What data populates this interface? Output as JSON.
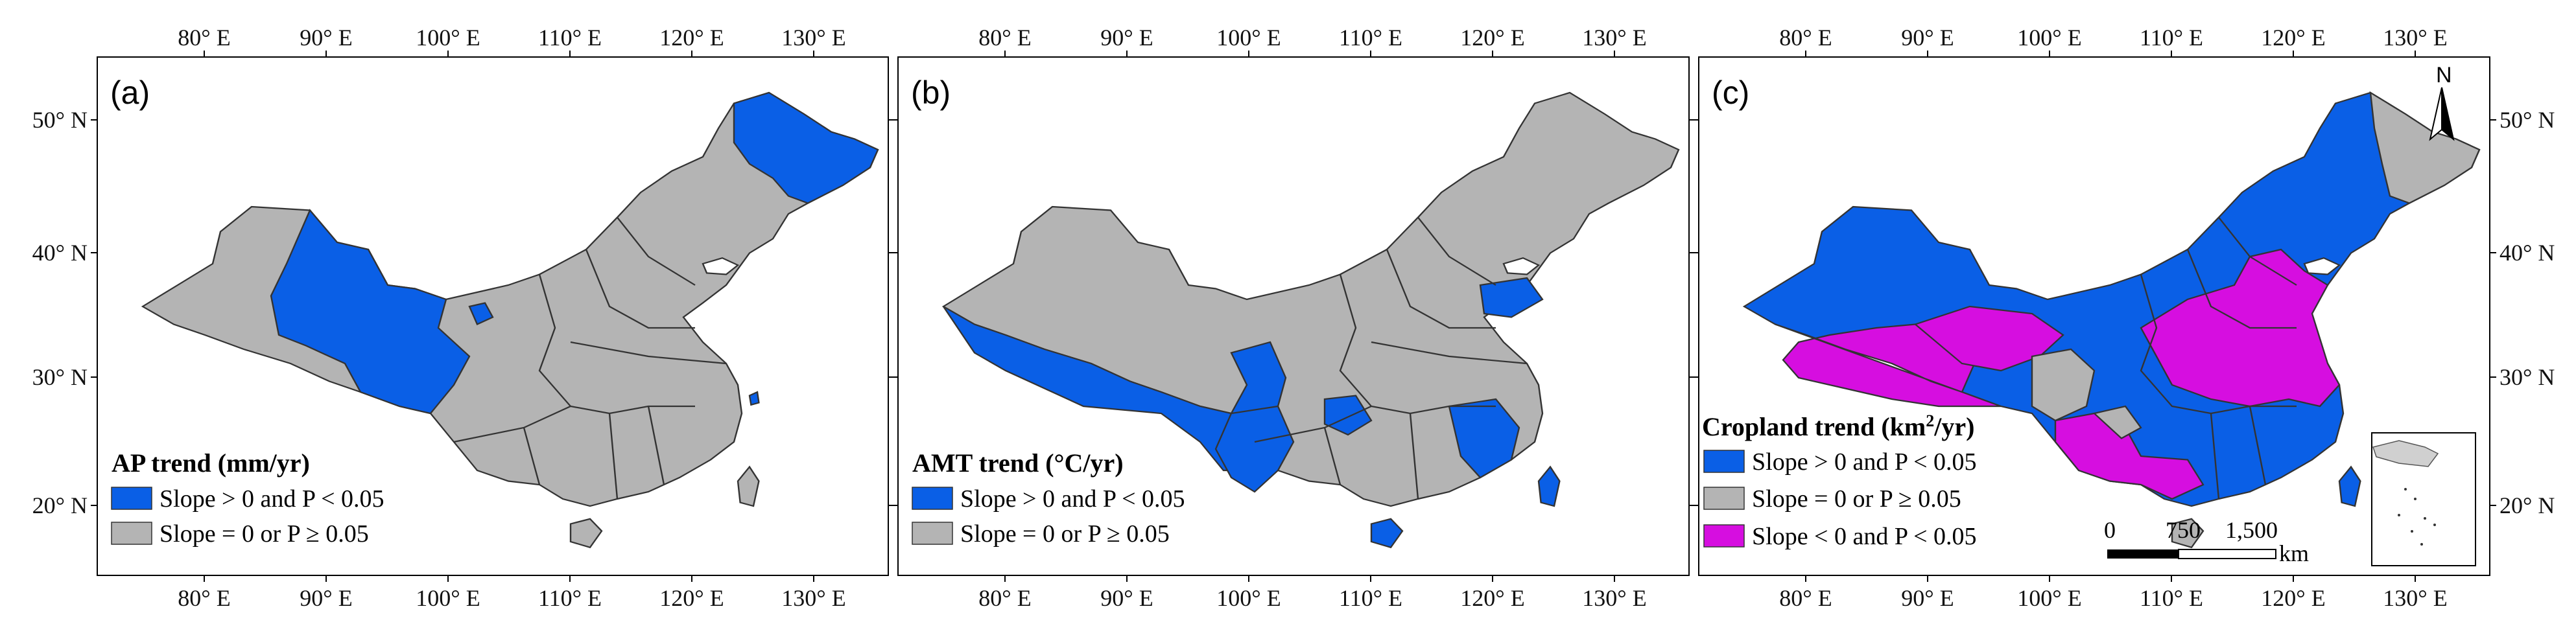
{
  "colors": {
    "blue": "#0a5fe6",
    "gray": "#b4b4b4",
    "magenta": "#d60ee0",
    "border": "#333333"
  },
  "lon_ticks": [
    "80° E",
    "90° E",
    "100° E",
    "110° E",
    "120° E",
    "130° E"
  ],
  "lat_ticks": [
    "50° N",
    "40° N",
    "30° N",
    "20° N"
  ],
  "panels": [
    {
      "letter": "(a)",
      "legend_title": "AP trend (mm/yr)",
      "legend_items": [
        {
          "label": "Slope > 0 and P < 0.05",
          "color": "#0a5fe6"
        },
        {
          "label": "Slope = 0 or P ≥ 0.05",
          "color": "#b4b4b4"
        }
      ]
    },
    {
      "letter": "(b)",
      "legend_title": "AMT trend (°C/yr)",
      "legend_items": [
        {
          "label": "Slope > 0 and P < 0.05",
          "color": "#0a5fe6"
        },
        {
          "label": "Slope = 0 or P ≥ 0.05",
          "color": "#b4b4b4"
        }
      ]
    },
    {
      "letter": "(c)",
      "legend_title_main": "Cropland trend (km",
      "legend_title_sup": "2",
      "legend_title_end": "/yr)",
      "legend_items": [
        {
          "label": "Slope > 0 and P < 0.05",
          "color": "#0a5fe6"
        },
        {
          "label": "Slope = 0 or P ≥ 0.05",
          "color": "#b4b4b4"
        },
        {
          "label": "Slope < 0 and P < 0.05",
          "color": "#d60ee0"
        }
      ],
      "scale_labels": [
        "0",
        "750",
        "1,500"
      ],
      "scale_unit": "km",
      "north_label": "N"
    }
  ]
}
